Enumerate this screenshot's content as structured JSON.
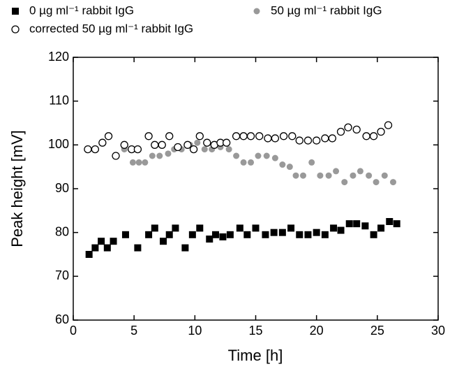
{
  "chart_data": {
    "type": "scatter",
    "x_label": "Time [h]",
    "y_label": "Peak height [mV]",
    "xlim": [
      0,
      30
    ],
    "xticks": [
      0,
      5,
      10,
      15,
      20,
      25,
      30
    ],
    "ylim": [
      60,
      120
    ],
    "yticks": [
      60,
      70,
      80,
      90,
      100,
      110,
      120
    ],
    "series": [
      {
        "name": "0 µg ml⁻¹ rabbit IgG",
        "color": "#000000",
        "marker": "square",
        "x": [
          1.3,
          1.8,
          2.3,
          2.8,
          3.3,
          4.3,
          5.3,
          6.2,
          6.7,
          7.4,
          7.9,
          8.4,
          9.2,
          9.8,
          10.4,
          11.2,
          11.7,
          12.3,
          12.9,
          13.7,
          14.3,
          15.0,
          15.8,
          16.5,
          17.2,
          17.9,
          18.6,
          19.3,
          20.0,
          20.7,
          21.4,
          22.0,
          22.7,
          23.3,
          24.0,
          24.7,
          25.3,
          26.0,
          26.6
        ],
        "values": [
          75,
          76.5,
          78,
          76.5,
          78,
          79.5,
          76.5,
          79.5,
          81,
          78,
          79.5,
          81,
          76.5,
          79.5,
          81,
          78.5,
          79.5,
          79,
          79.5,
          81,
          79.5,
          81,
          79.5,
          80,
          80,
          81,
          79.5,
          79.5,
          80,
          79.5,
          81,
          80.5,
          82,
          82,
          81.5,
          79.5,
          81,
          82.5,
          82
        ]
      },
      {
        "name": "50 µg ml⁻¹ rabbit IgG",
        "color": "#999999",
        "marker": "circle",
        "x": [
          4.2,
          4.9,
          5.4,
          5.9,
          6.5,
          7.1,
          7.8,
          8.3,
          8.9,
          9.6,
          10.2,
          10.8,
          11.4,
          12.1,
          12.8,
          13.4,
          14.0,
          14.6,
          15.2,
          15.9,
          16.6,
          17.2,
          17.8,
          18.3,
          18.9,
          19.6,
          20.3,
          21.0,
          21.6,
          22.3,
          23.0,
          23.6,
          24.3,
          24.9,
          25.6,
          26.3
        ],
        "values": [
          99,
          96,
          96,
          96,
          97.5,
          97.5,
          98,
          99,
          99,
          100,
          100.5,
          99,
          99,
          99.5,
          99,
          97.5,
          96,
          96,
          97.5,
          97.5,
          97,
          95.5,
          95,
          93,
          93,
          96,
          93,
          93,
          94,
          91.5,
          93,
          94,
          93,
          91.5,
          93,
          91.5
        ]
      },
      {
        "name": "corrected 50 µg ml⁻¹ rabbit IgG",
        "color": "#000000",
        "marker": "open-circle",
        "x": [
          1.2,
          1.8,
          2.4,
          2.9,
          3.5,
          4.2,
          4.8,
          5.3,
          6.2,
          6.7,
          7.3,
          7.9,
          8.6,
          9.4,
          9.9,
          10.4,
          11.0,
          11.6,
          12.1,
          12.6,
          13.4,
          14.0,
          14.6,
          15.3,
          16.0,
          16.6,
          17.3,
          18.0,
          18.6,
          19.3,
          20.0,
          20.7,
          21.3,
          22.0,
          22.6,
          23.3,
          24.1,
          24.7,
          25.3,
          25.9
        ],
        "values": [
          99,
          99,
          100.5,
          102,
          97.5,
          100,
          99,
          99,
          102,
          100,
          100,
          102,
          99.5,
          100,
          99,
          102,
          100.5,
          100,
          100.5,
          100.5,
          102,
          102,
          102,
          102,
          101.5,
          101.5,
          102,
          102,
          101,
          101,
          101,
          101.5,
          101.5,
          103,
          104,
          103.5,
          102,
          102,
          103,
          104.5
        ]
      }
    ]
  }
}
